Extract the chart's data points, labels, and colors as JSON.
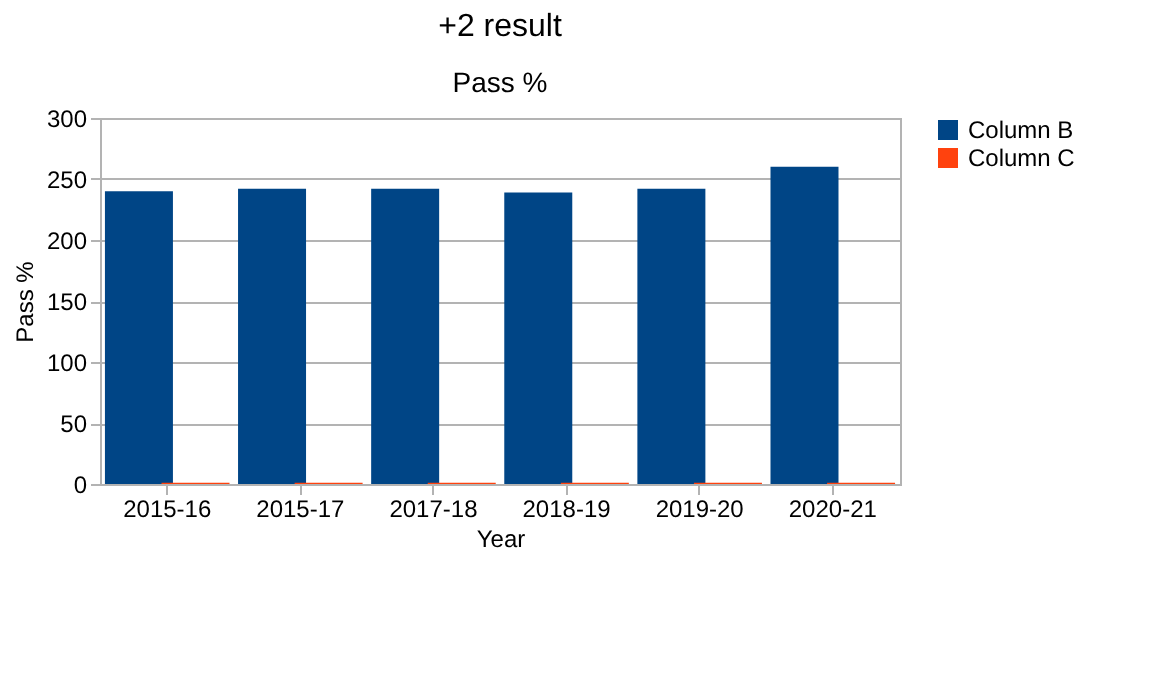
{
  "chart_data": {
    "type": "bar",
    "title": "+2 result",
    "subtitle": "Pass %",
    "xlabel": "Year",
    "ylabel": "Pass %",
    "categories": [
      "2015-16",
      "2015-17",
      "2017-18",
      "2018-19",
      "2019-20",
      "2020-21"
    ],
    "series": [
      {
        "name": "Column B",
        "color": "#004586",
        "values": [
          240,
          242,
          242,
          239,
          242,
          260
        ]
      },
      {
        "name": "Column C",
        "color": "#ff420e",
        "values": [
          1,
          1,
          1,
          1,
          1,
          1
        ]
      }
    ],
    "ylim": [
      0,
      300
    ],
    "yticks": [
      0,
      50,
      100,
      150,
      200,
      250,
      300
    ],
    "grid": "y",
    "legend": "right"
  }
}
